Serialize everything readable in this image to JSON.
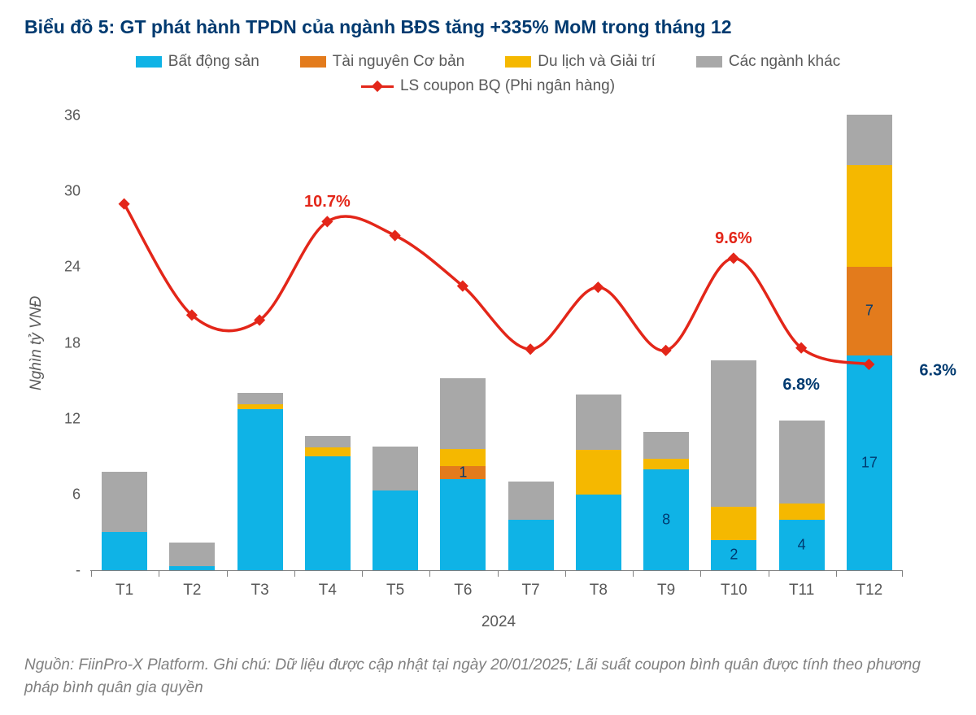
{
  "title": "Biểu đồ 5: GT phát hành TPDN của ngành BĐS tăng +335% MoM trong tháng 12",
  "ylabel": "Nghìn tỷ VNĐ",
  "xaxis_title": "2024",
  "source": "Nguồn: FiinPro-X Platform. Ghi chú: Dữ liệu được cập nhật tại ngày 20/01/2025; Lãi suất coupon bình quân được tính theo phương pháp bình quân gia quyền",
  "legend": {
    "s1": "Bất động sản",
    "s2": "Tài nguyên Cơ bản",
    "s3": "Du lịch và Giải trí",
    "s4": "Các ngành khác",
    "line": "LS coupon BQ (Phi ngân hàng)"
  },
  "colors": {
    "s1": "#0fb3e6",
    "s2": "#e37b1c",
    "s3": "#f5b800",
    "s4": "#a8a8a8",
    "line": "#e32619",
    "title": "#003a70",
    "axis_text": "#595959"
  },
  "chart": {
    "type": "stacked-bar-with-line",
    "ylim": [
      0,
      36
    ],
    "ytick_step": 6,
    "yticks": [
      "-",
      "6",
      "12",
      "18",
      "24",
      "30",
      "36"
    ],
    "categories": [
      "T1",
      "T2",
      "T3",
      "T4",
      "T5",
      "T6",
      "T7",
      "T8",
      "T9",
      "T10",
      "T11",
      "T12"
    ],
    "series": {
      "s1": [
        3.0,
        0.3,
        12.7,
        9.0,
        6.3,
        7.2,
        4.0,
        6.0,
        8.0,
        2.4,
        4.0,
        17.0
      ],
      "s2": [
        0.0,
        0.0,
        0.0,
        0.0,
        0.0,
        1.0,
        0.0,
        0.0,
        0.0,
        0.0,
        0.0,
        7.0
      ],
      "s3": [
        0.0,
        0.0,
        0.4,
        0.7,
        0.0,
        1.4,
        0.0,
        3.5,
        0.8,
        2.6,
        1.3,
        8.0
      ],
      "s4": [
        4.8,
        1.9,
        0.9,
        0.9,
        3.5,
        5.6,
        3.0,
        4.4,
        2.1,
        11.6,
        6.5,
        4.0
      ]
    },
    "bar_labels": {
      "5": {
        "s2": "1"
      },
      "8": {
        "s1": "8"
      },
      "9": {
        "s1": "2"
      },
      "10": {
        "s1": "4"
      },
      "11": {
        "s1": "17",
        "s2": "7"
      }
    },
    "line_y_percent": [
      29.0,
      20.2,
      19.8,
      27.6,
      26.5,
      22.5,
      17.5,
      22.4,
      17.4,
      24.7,
      17.6,
      16.3
    ],
    "line_value_labels": [
      {
        "idx": 3,
        "text": "10.7%",
        "color": "red",
        "dy": -12
      },
      {
        "idx": 9,
        "text": "9.6%",
        "color": "red",
        "dy": -12
      },
      {
        "idx": 10,
        "text": "6.8%",
        "color": "dark",
        "dy": 34
      },
      {
        "idx": 11,
        "text": "6.3%",
        "color": "dark",
        "dy": 8,
        "dx": 62
      }
    ]
  }
}
